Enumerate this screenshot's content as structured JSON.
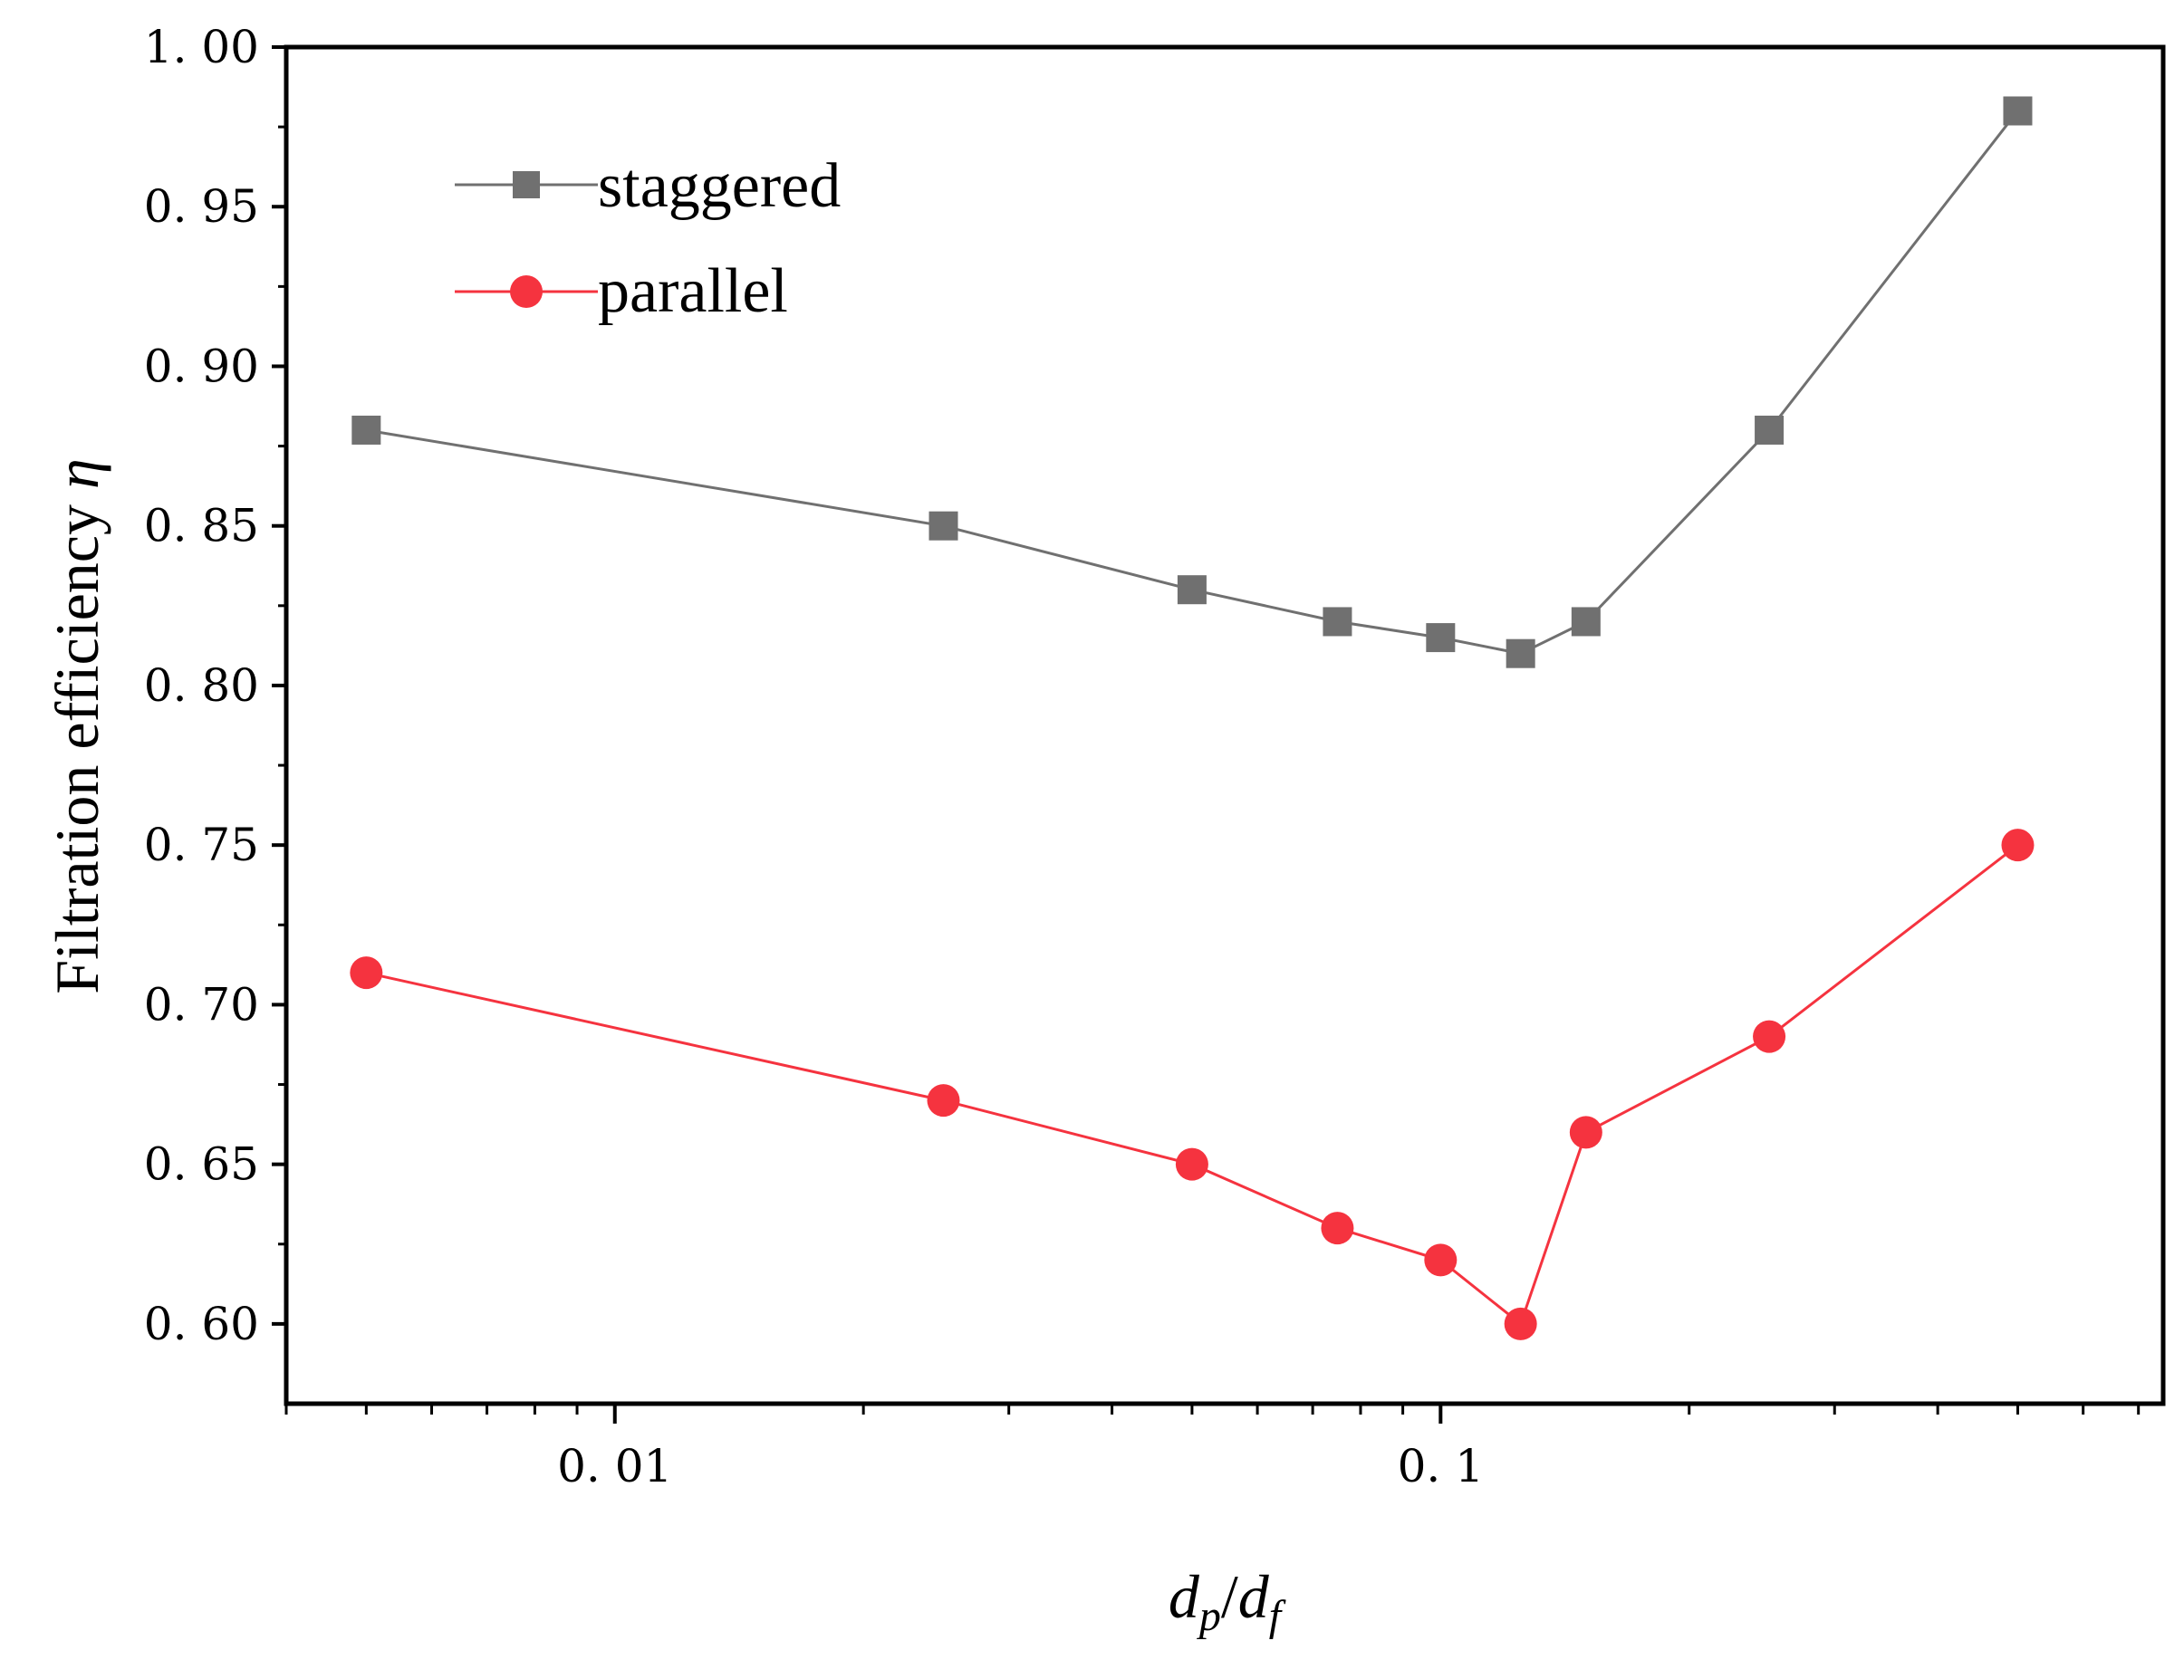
{
  "chart_data": {
    "type": "line",
    "title": "",
    "xlabel": {
      "base": "d",
      "sub1": "p",
      "sep": "/",
      "base2": "d",
      "sub2": "f"
    },
    "ylabel": {
      "text": "Filtration efficiency ",
      "symbol": "η"
    },
    "xscale": "log",
    "xlim": [
      0.004,
      0.75
    ],
    "ylim": [
      0.575,
      1.0
    ],
    "x_ticks": [
      {
        "value": 0.01,
        "label": "0. 01"
      },
      {
        "value": 0.1,
        "label": "0. 1"
      }
    ],
    "y_ticks": [
      {
        "value": 0.6,
        "label": "0. 60"
      },
      {
        "value": 0.65,
        "label": "0. 65"
      },
      {
        "value": 0.7,
        "label": "0. 70"
      },
      {
        "value": 0.75,
        "label": "0. 75"
      },
      {
        "value": 0.8,
        "label": "0. 80"
      },
      {
        "value": 0.85,
        "label": "0. 85"
      },
      {
        "value": 0.9,
        "label": "0. 90"
      },
      {
        "value": 0.95,
        "label": "0. 95"
      },
      {
        "value": 1.0,
        "label": "1. 00"
      }
    ],
    "legend_position": "top-left",
    "series": [
      {
        "name": "staggered",
        "color": "#707070",
        "marker": "square",
        "x": [
          0.005,
          0.025,
          0.05,
          0.075,
          0.1,
          0.125,
          0.15,
          0.25,
          0.5
        ],
        "values": [
          0.88,
          0.85,
          0.83,
          0.82,
          0.815,
          0.81,
          0.82,
          0.88,
          0.98
        ]
      },
      {
        "name": "parallel",
        "color": "#f5333f",
        "marker": "circle",
        "x": [
          0.005,
          0.025,
          0.05,
          0.075,
          0.1,
          0.125,
          0.15,
          0.25,
          0.5
        ],
        "values": [
          0.71,
          0.67,
          0.65,
          0.63,
          0.62,
          0.6,
          0.66,
          0.69,
          0.75
        ]
      }
    ]
  }
}
